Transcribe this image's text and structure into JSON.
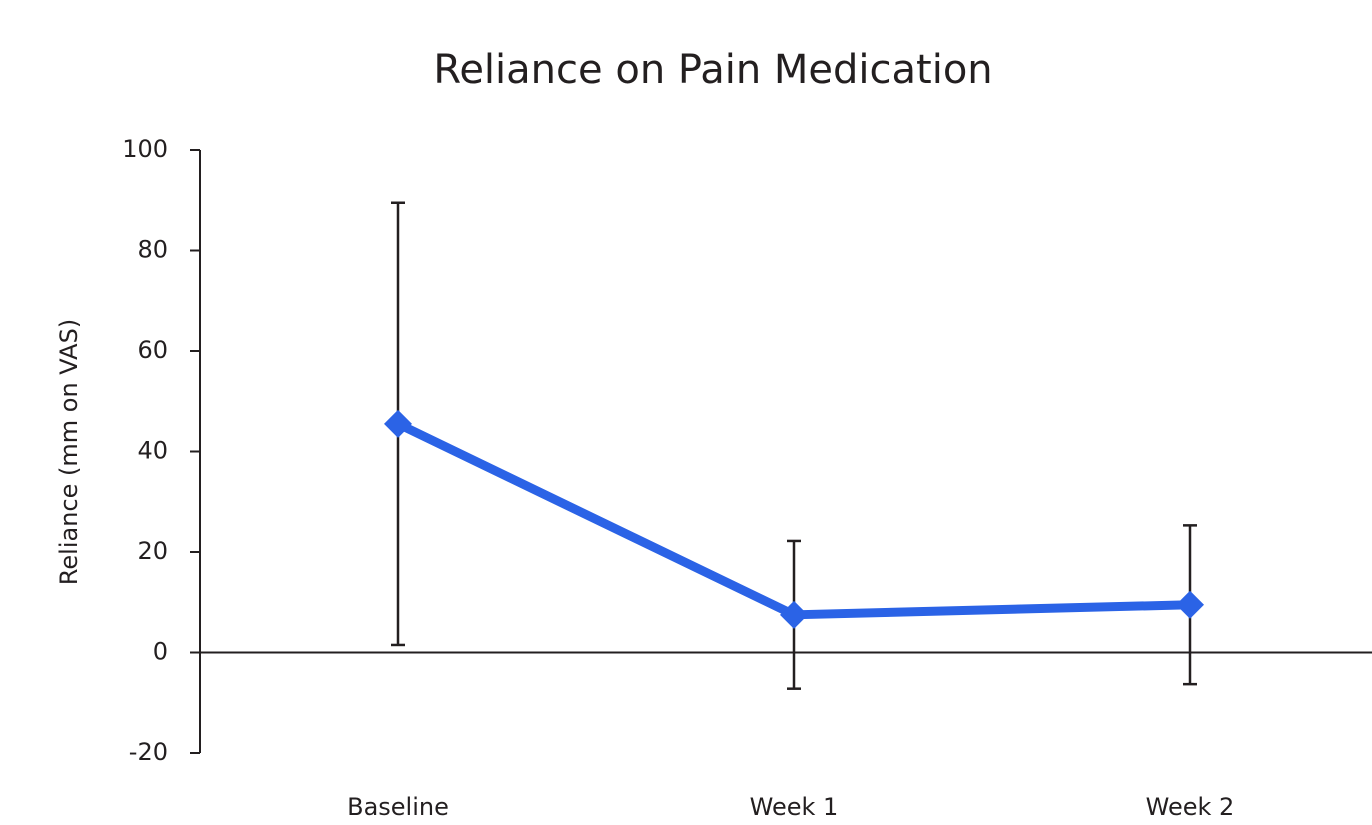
{
  "chart_data": {
    "type": "line",
    "title": "Reliance on Pain Medication",
    "ylabel": "Reliance (mm on VAS)",
    "categories": [
      "Baseline",
      "Week 1",
      "Week 2"
    ],
    "series": [
      {
        "name": "Reliance",
        "color": "#2b63e6",
        "values": [
          45.5,
          7.5,
          9.5
        ],
        "errors": [
          44,
          14.7,
          15.8
        ]
      }
    ],
    "ylim": [
      -20,
      100
    ],
    "yticks": [
      -20,
      0,
      20,
      40,
      60,
      80,
      100
    ]
  }
}
